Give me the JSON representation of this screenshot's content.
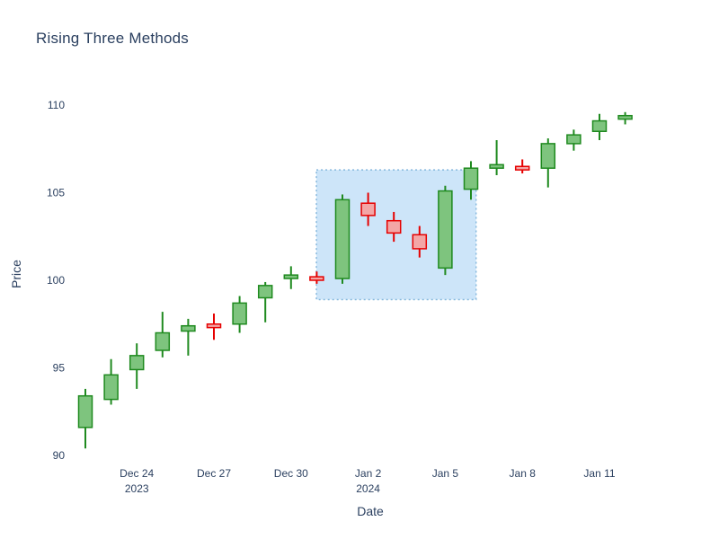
{
  "colors": {
    "text": "#2a3f5f",
    "background": "#ffffff",
    "increasing_line": "#1f8a1f",
    "increasing_fill": "#7ec47e",
    "decreasing_line": "#e60000",
    "decreasing_fill": "#f3a6a6",
    "highlight_fill": "#cde5f9",
    "highlight_border": "#86b8dd"
  },
  "chart_data": {
    "type": "candlestick",
    "title": "Rising Three Methods",
    "xlabel": "Date",
    "ylabel": "Price",
    "ylim": [
      90,
      110
    ],
    "yticks": [
      90,
      95,
      100,
      105,
      110
    ],
    "xticks": [
      {
        "index": 2,
        "label": "Dec 24",
        "sublabel": "2023"
      },
      {
        "index": 5,
        "label": "Dec 27"
      },
      {
        "index": 8,
        "label": "Dec 30"
      },
      {
        "index": 11,
        "label": "Jan 2",
        "sublabel": "2024"
      },
      {
        "index": 14,
        "label": "Jan 5"
      },
      {
        "index": 17,
        "label": "Jan 8"
      },
      {
        "index": 20,
        "label": "Jan 11"
      }
    ],
    "candles": [
      {
        "date": "Dec 22",
        "open": 91.6,
        "high": 93.8,
        "low": 90.4,
        "close": 93.4
      },
      {
        "date": "Dec 23",
        "open": 93.2,
        "high": 95.5,
        "low": 92.9,
        "close": 94.6
      },
      {
        "date": "Dec 24",
        "open": 94.9,
        "high": 96.4,
        "low": 93.8,
        "close": 95.7
      },
      {
        "date": "Dec 25",
        "open": 96.0,
        "high": 98.2,
        "low": 95.6,
        "close": 97.0
      },
      {
        "date": "Dec 26",
        "open": 97.1,
        "high": 97.8,
        "low": 95.7,
        "close": 97.4
      },
      {
        "date": "Dec 27",
        "open": 97.5,
        "high": 98.1,
        "low": 96.6,
        "close": 97.3
      },
      {
        "date": "Dec 28",
        "open": 97.5,
        "high": 99.1,
        "low": 97.0,
        "close": 98.7
      },
      {
        "date": "Dec 29",
        "open": 99.0,
        "high": 99.9,
        "low": 97.6,
        "close": 99.7
      },
      {
        "date": "Dec 30",
        "open": 100.1,
        "high": 100.8,
        "low": 99.5,
        "close": 100.3
      },
      {
        "date": "Dec 31",
        "open": 100.2,
        "high": 100.5,
        "low": 99.8,
        "close": 100.0
      },
      {
        "date": "Jan 1",
        "open": 100.1,
        "high": 104.9,
        "low": 99.8,
        "close": 104.6
      },
      {
        "date": "Jan 2",
        "open": 104.4,
        "high": 105.0,
        "low": 103.1,
        "close": 103.7
      },
      {
        "date": "Jan 3",
        "open": 103.4,
        "high": 103.9,
        "low": 102.2,
        "close": 102.7
      },
      {
        "date": "Jan 4",
        "open": 102.6,
        "high": 103.1,
        "low": 101.3,
        "close": 101.8
      },
      {
        "date": "Jan 5",
        "open": 100.7,
        "high": 105.4,
        "low": 100.3,
        "close": 105.1
      },
      {
        "date": "Jan 6",
        "open": 105.2,
        "high": 106.8,
        "low": 104.6,
        "close": 106.4
      },
      {
        "date": "Jan 7",
        "open": 106.4,
        "high": 108.0,
        "low": 106.0,
        "close": 106.6
      },
      {
        "date": "Jan 8",
        "open": 106.5,
        "high": 106.9,
        "low": 106.1,
        "close": 106.3
      },
      {
        "date": "Jan 9",
        "open": 106.4,
        "high": 108.1,
        "low": 105.3,
        "close": 107.8
      },
      {
        "date": "Jan 10",
        "open": 107.8,
        "high": 108.6,
        "low": 107.4,
        "close": 108.3
      },
      {
        "date": "Jan 11",
        "open": 108.5,
        "high": 109.5,
        "low": 108.0,
        "close": 109.1
      },
      {
        "date": "Jan 12",
        "open": 109.2,
        "high": 109.6,
        "low": 108.9,
        "close": 109.4
      }
    ],
    "highlight_region": {
      "name": "rising-three-methods-pattern",
      "x0": 9.25,
      "x1": 15.2,
      "y0": 98.9,
      "y1": 106.3
    },
    "legend": "off",
    "grid": "off"
  }
}
